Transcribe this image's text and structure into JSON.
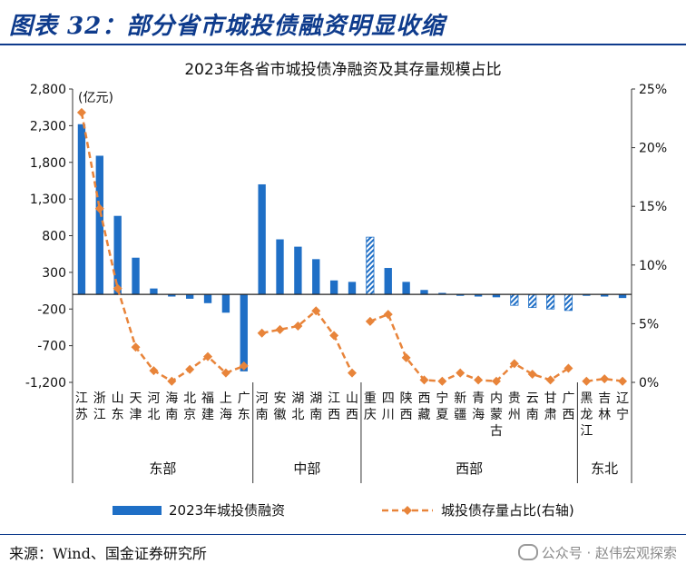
{
  "header": {
    "title": "图表 32：部分省市城投债融资明显收缩"
  },
  "footer": {
    "source": "来源：Wind、国金证券研究所",
    "watermark": "公众号 · 赵伟宏观探索"
  },
  "colors": {
    "bar": "#1f6fc6",
    "line": "#e8843a",
    "marker": "#e8843a",
    "header": "#0e3b8c"
  },
  "chart_data": {
    "type": "bar",
    "title": "2023年各省市城投债净融资及其存量规模占比",
    "unit_label": "(亿元)",
    "left_axis": {
      "ticks": [
        "2,800",
        "2,300",
        "1,800",
        "1,300",
        "800",
        "300",
        "-200",
        "-700",
        "-1,200"
      ],
      "range": [
        -1200,
        2800
      ]
    },
    "right_axis": {
      "ticks": [
        "25%",
        "20%",
        "15%",
        "10%",
        "5%",
        "0%"
      ],
      "range": [
        0,
        25
      ]
    },
    "categories": [
      "江苏",
      "浙江",
      "山东",
      "天津",
      "河北",
      "海南",
      "北京",
      "福建",
      "上海",
      "广东",
      "河南",
      "安徽",
      "湖北",
      "湖南",
      "江西",
      "山西",
      "重庆",
      "四川",
      "陕西",
      "西藏",
      "宁夏",
      "新疆",
      "青海",
      "内蒙古",
      "贵州",
      "云南",
      "甘肃",
      "广西",
      "黑龙江",
      "吉林",
      "辽宁"
    ],
    "series": [
      {
        "name": "2023年城投债融资",
        "kind": "bar",
        "values": [
          2320,
          1890,
          1070,
          500,
          80,
          -30,
          -60,
          -120,
          -250,
          -1050,
          1500,
          750,
          650,
          480,
          190,
          170,
          780,
          360,
          170,
          60,
          20,
          -20,
          -30,
          -40,
          -150,
          -180,
          -200,
          -220,
          -20,
          -30,
          -50
        ],
        "hatched": [
          false,
          false,
          false,
          false,
          false,
          false,
          false,
          false,
          false,
          false,
          false,
          false,
          false,
          false,
          false,
          false,
          true,
          false,
          false,
          false,
          false,
          false,
          false,
          false,
          true,
          true,
          true,
          true,
          false,
          false,
          false
        ]
      },
      {
        "name": "城投债存量占比(右轴)",
        "kind": "line",
        "values": [
          23.0,
          14.8,
          8.0,
          3.0,
          1.0,
          0.1,
          1.1,
          2.2,
          0.8,
          1.4,
          4.2,
          4.5,
          4.8,
          6.1,
          4.0,
          0.8,
          5.2,
          5.8,
          2.1,
          0.2,
          0.1,
          0.8,
          0.2,
          0.1,
          1.6,
          0.7,
          0.2,
          1.2,
          0.1,
          0.3,
          0.1
        ]
      }
    ],
    "groups": [
      {
        "name": "东部",
        "start": 0,
        "end": 9
      },
      {
        "name": "中部",
        "start": 10,
        "end": 15
      },
      {
        "name": "西部",
        "start": 16,
        "end": 27
      },
      {
        "name": "东北",
        "start": 28,
        "end": 30
      }
    ],
    "legend": [
      "2023年城投债融资",
      "城投债存量占比(右轴)"
    ]
  }
}
